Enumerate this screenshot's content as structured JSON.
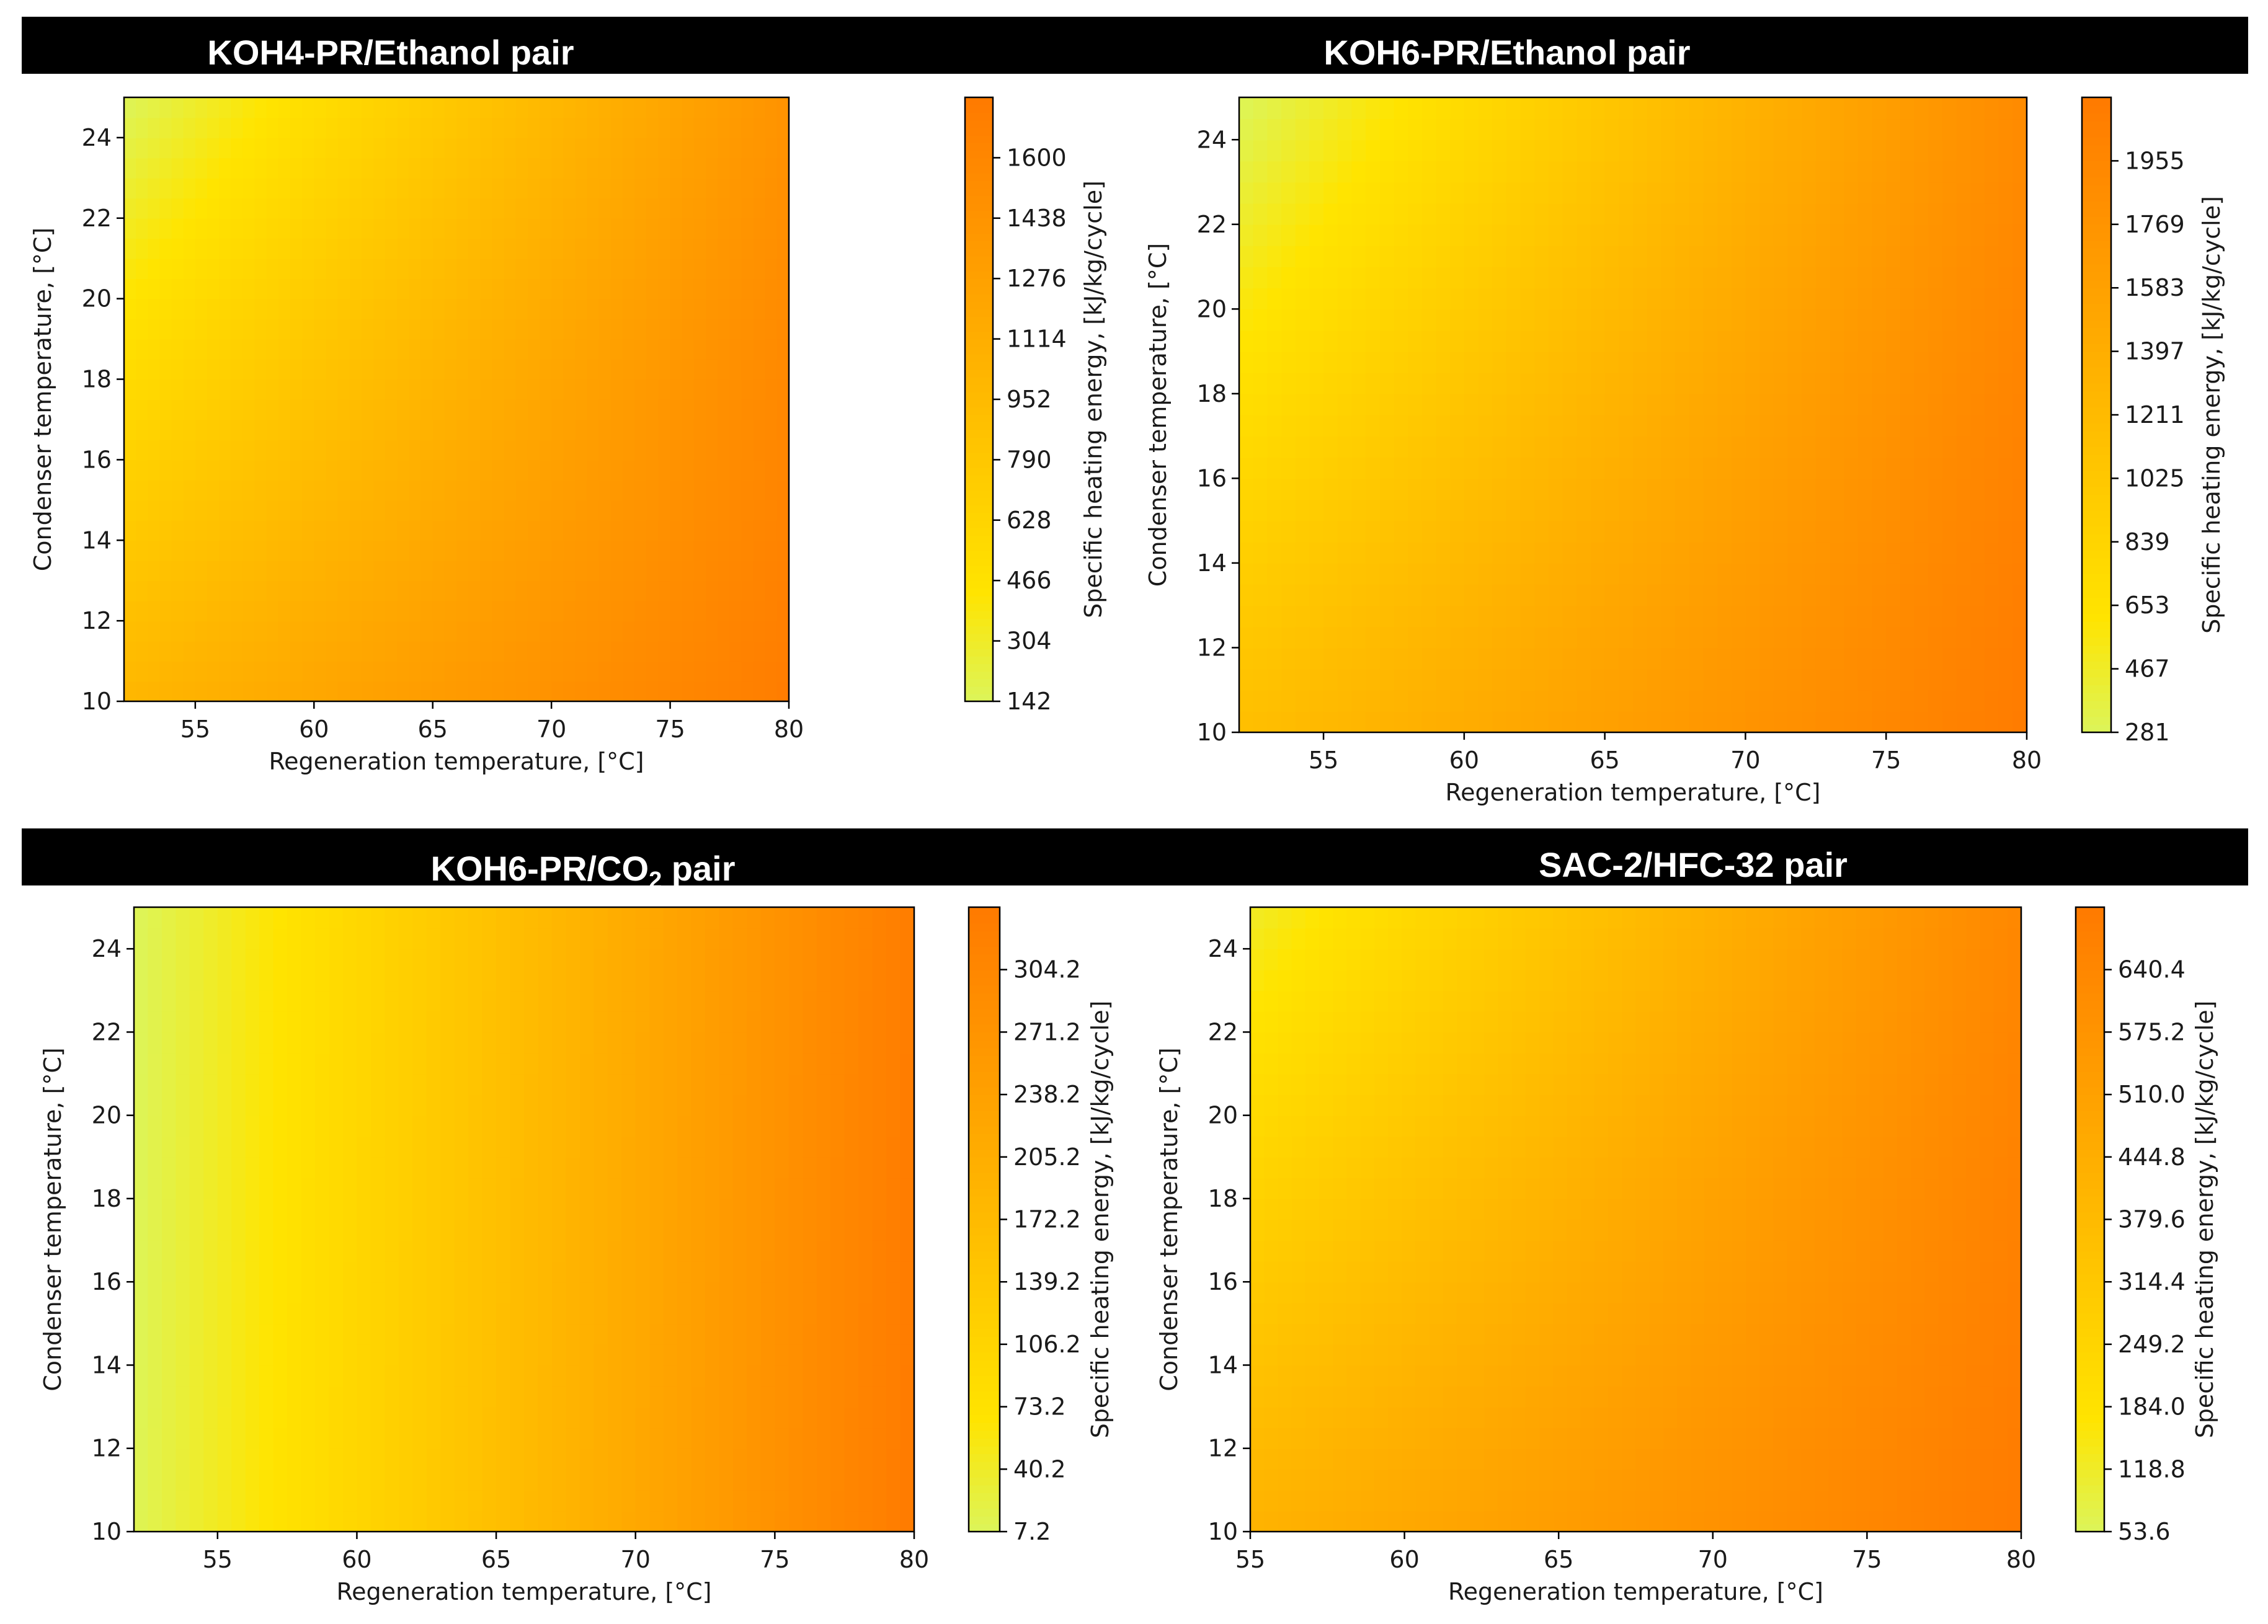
{
  "colors": {
    "title_bar": "#000000",
    "title_text": "#ffffff",
    "cmap_low": "#dcf55a",
    "cmap_mid": "#ffe400",
    "cmap_high": "#ff7a00"
  },
  "chart_data": [
    {
      "type": "heatmap",
      "title": "KOH4-PR/Ethanol pair",
      "xlabel": "Regeneration temperature, [°C]",
      "ylabel": "Condenser temperature, [°C]",
      "colorbar_label": "Specific heating energy, [kJ/kg/cycle]",
      "xlim": [
        52,
        80
      ],
      "ylim": [
        10,
        25
      ],
      "xticks": [
        55,
        60,
        65,
        70,
        75,
        80
      ],
      "yticks": [
        10,
        12,
        14,
        16,
        18,
        20,
        22,
        24
      ],
      "xtick_labels": [
        "55",
        "60",
        "65",
        "70",
        "75",
        "80"
      ],
      "ytick_labels": [
        "10",
        "12",
        "14",
        "16",
        "18",
        "20",
        "22",
        "24"
      ],
      "colorbar_range": [
        142,
        1762
      ],
      "colorbar_ticks": [
        142,
        304,
        466,
        628,
        790,
        952,
        1114,
        1276,
        1438,
        1600
      ],
      "colorbar_tick_labels": [
        "142",
        "304",
        "466",
        "628",
        "790",
        "952",
        "1114",
        "1276",
        "1438",
        "1600"
      ],
      "corner_values": {
        "low_x_low_y": 1000,
        "low_x_high_y": 142,
        "high_x_low_y": 1730,
        "high_x_high_y": 1450
      }
    },
    {
      "type": "heatmap",
      "title": "KOH6-PR/Ethanol pair",
      "xlabel": "Regeneration temperature, [°C]",
      "ylabel": "Condenser temperature, [°C]",
      "colorbar_label": "Specific heating energy, [kJ/kg/cycle]",
      "xlim": [
        52,
        80
      ],
      "ylim": [
        10,
        25
      ],
      "xticks": [
        55,
        60,
        65,
        70,
        75,
        80
      ],
      "yticks": [
        10,
        12,
        14,
        16,
        18,
        20,
        22,
        24
      ],
      "xtick_labels": [
        "55",
        "60",
        "65",
        "70",
        "75",
        "80"
      ],
      "ytick_labels": [
        "10",
        "12",
        "14",
        "16",
        "18",
        "20",
        "22",
        "24"
      ],
      "colorbar_range": [
        281,
        2141
      ],
      "colorbar_ticks": [
        281,
        467,
        653,
        839,
        1025,
        1211,
        1397,
        1583,
        1769,
        1955
      ],
      "colorbar_tick_labels": [
        "281",
        "467",
        "653",
        "839",
        "1025",
        "1211",
        "1397",
        "1583",
        "1769",
        "1955"
      ],
      "corner_values": {
        "low_x_low_y": 1150,
        "low_x_high_y": 281,
        "high_x_low_y": 2120,
        "high_x_high_y": 1900
      }
    },
    {
      "type": "heatmap",
      "title_main": "KOH6-PR/CO",
      "title_sub": "2",
      "title_tail": " pair",
      "xlabel": "Regeneration temperature, [°C]",
      "ylabel": "Condenser temperature, [°C]",
      "colorbar_label": "Specific heating energy, [kJ/kg/cycle]",
      "xlim": [
        52,
        80
      ],
      "ylim": [
        10,
        25
      ],
      "xticks": [
        55,
        60,
        65,
        70,
        75,
        80
      ],
      "yticks": [
        10,
        12,
        14,
        16,
        18,
        20,
        22,
        24
      ],
      "xtick_labels": [
        "55",
        "60",
        "65",
        "70",
        "75",
        "80"
      ],
      "ytick_labels": [
        "10",
        "12",
        "14",
        "16",
        "18",
        "20",
        "22",
        "24"
      ],
      "colorbar_range": [
        7.2,
        337.2
      ],
      "colorbar_ticks": [
        7.2,
        40.2,
        73.2,
        106.2,
        139.2,
        172.2,
        205.2,
        238.2,
        271.2,
        304.2
      ],
      "colorbar_tick_labels": [
        "7.2",
        "40.2",
        "73.2",
        "106.2",
        "139.2",
        "172.2",
        "205.2",
        "238.2",
        "271.2",
        "304.2"
      ],
      "corner_values": {
        "low_x_low_y": 10,
        "low_x_high_y": 7.2,
        "high_x_low_y": 335,
        "high_x_high_y": 330
      }
    },
    {
      "type": "heatmap",
      "title": "SAC-2/HFC-32 pair",
      "xlabel": "Regeneration temperature, [°C]",
      "ylabel": "Condenser temperature, [°C]",
      "colorbar_label": "Specific heating energy, [kJ/kg/cycle]",
      "xlim": [
        55,
        80
      ],
      "ylim": [
        10,
        25
      ],
      "xticks": [
        55,
        60,
        65,
        70,
        75,
        80
      ],
      "yticks": [
        10,
        12,
        14,
        16,
        18,
        20,
        22,
        24
      ],
      "xtick_labels": [
        "55",
        "60",
        "65",
        "70",
        "75",
        "80"
      ],
      "ytick_labels": [
        "10",
        "12",
        "14",
        "16",
        "18",
        "20",
        "22",
        "24"
      ],
      "colorbar_range": [
        53.6,
        705.6
      ],
      "colorbar_ticks": [
        53.6,
        118.8,
        184.0,
        249.2,
        314.4,
        379.6,
        444.8,
        510.0,
        575.2,
        640.4
      ],
      "colorbar_tick_labels": [
        "53.6",
        "118.8",
        "184.0",
        "249.2",
        "314.4",
        "379.6",
        "444.8",
        "510.0",
        "575.2",
        "640.4"
      ],
      "corner_values": {
        "low_x_low_y": 420,
        "low_x_high_y": 120,
        "high_x_low_y": 700,
        "high_x_high_y": 640
      }
    }
  ]
}
